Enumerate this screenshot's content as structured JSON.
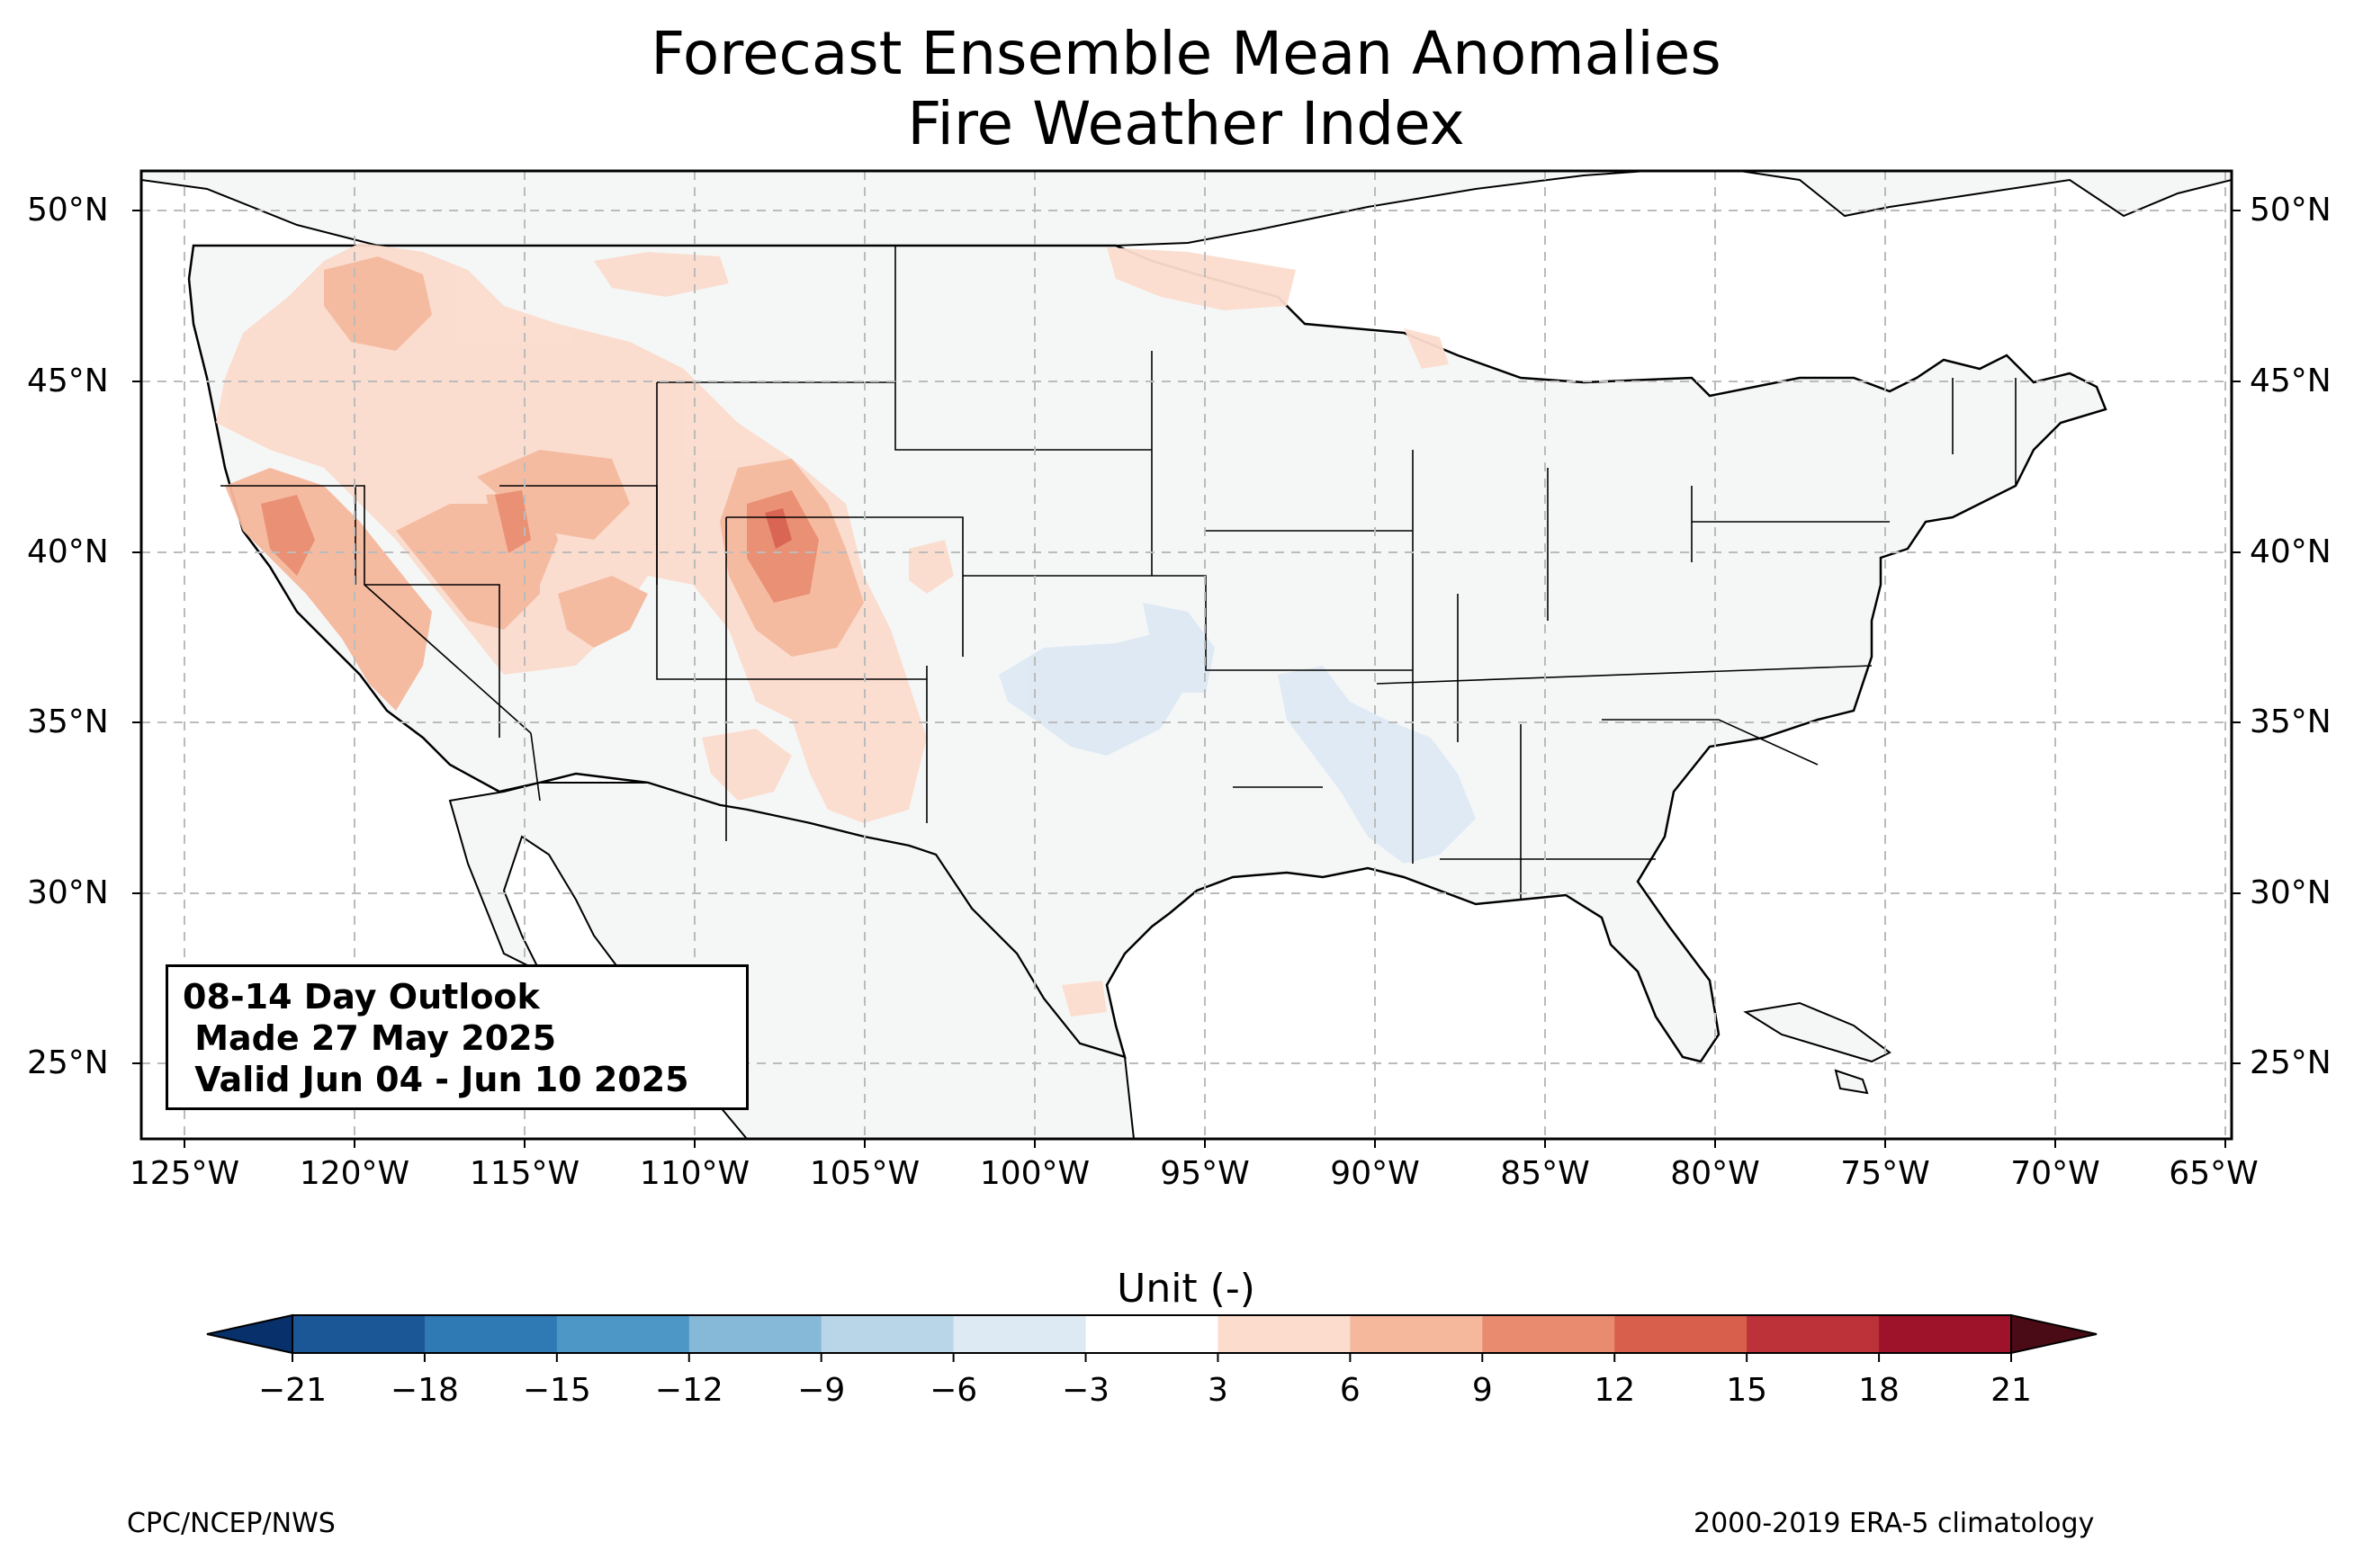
{
  "title": {
    "line1": "Forecast Ensemble Mean Anomalies",
    "line2": "Fire Weather Index"
  },
  "map": {
    "lat_ticks": [
      "50°N",
      "45°N",
      "40°N",
      "35°N",
      "30°N",
      "25°N"
    ],
    "lon_ticks": [
      "125°W",
      "120°W",
      "115°W",
      "110°W",
      "105°W",
      "100°W",
      "95°W",
      "90°W",
      "85°W",
      "80°W",
      "75°W",
      "70°W",
      "65°W"
    ],
    "ocean_color": "#ffffff",
    "land_color": "#f5f7f7",
    "gridlines": "dashed",
    "lon_range": [
      -126.3,
      -64.9
    ],
    "lat_range": [
      22.8,
      51.2
    ]
  },
  "outlook_box": {
    "line1": "08-14 Day Outlook",
    "line2": " Made 27 May 2025",
    "line3": " Valid Jun 04 - Jun 10 2025"
  },
  "colorbar": {
    "label": "Unit (-)",
    "ticks": [
      "−21",
      "−18",
      "−15",
      "−12",
      "−9",
      "−6",
      "−3",
      "3",
      "6",
      "9",
      "12",
      "15",
      "18",
      "21"
    ],
    "colors": [
      "#08306b",
      "#1b5797",
      "#2f79b5",
      "#4d97c6",
      "#86b9d8",
      "#b9d6e9",
      "#dde9f3",
      "#ffffff",
      "#fbdccd",
      "#f6b89d",
      "#e98b6f",
      "#d85f4c",
      "#bd3138",
      "#9e1329",
      "#4a0b16"
    ]
  },
  "credits": {
    "left": "CPC/NCEP/NWS",
    "right": "2000-2019 ERA-5 climatology"
  },
  "anomalies": [
    {
      "region": "Pacific Northwest / Northern Rockies",
      "value": 6,
      "color": "#fbdccd"
    },
    {
      "region": "California, Nevada, Utah, Colorado",
      "value": 9,
      "color": "#f6b89d"
    },
    {
      "region": "Northern Colorado core",
      "value": 15,
      "color": "#d85f4c"
    },
    {
      "region": "Southern Plains / Lower Mississippi",
      "value": -3,
      "color": "#dde9f3"
    }
  ]
}
